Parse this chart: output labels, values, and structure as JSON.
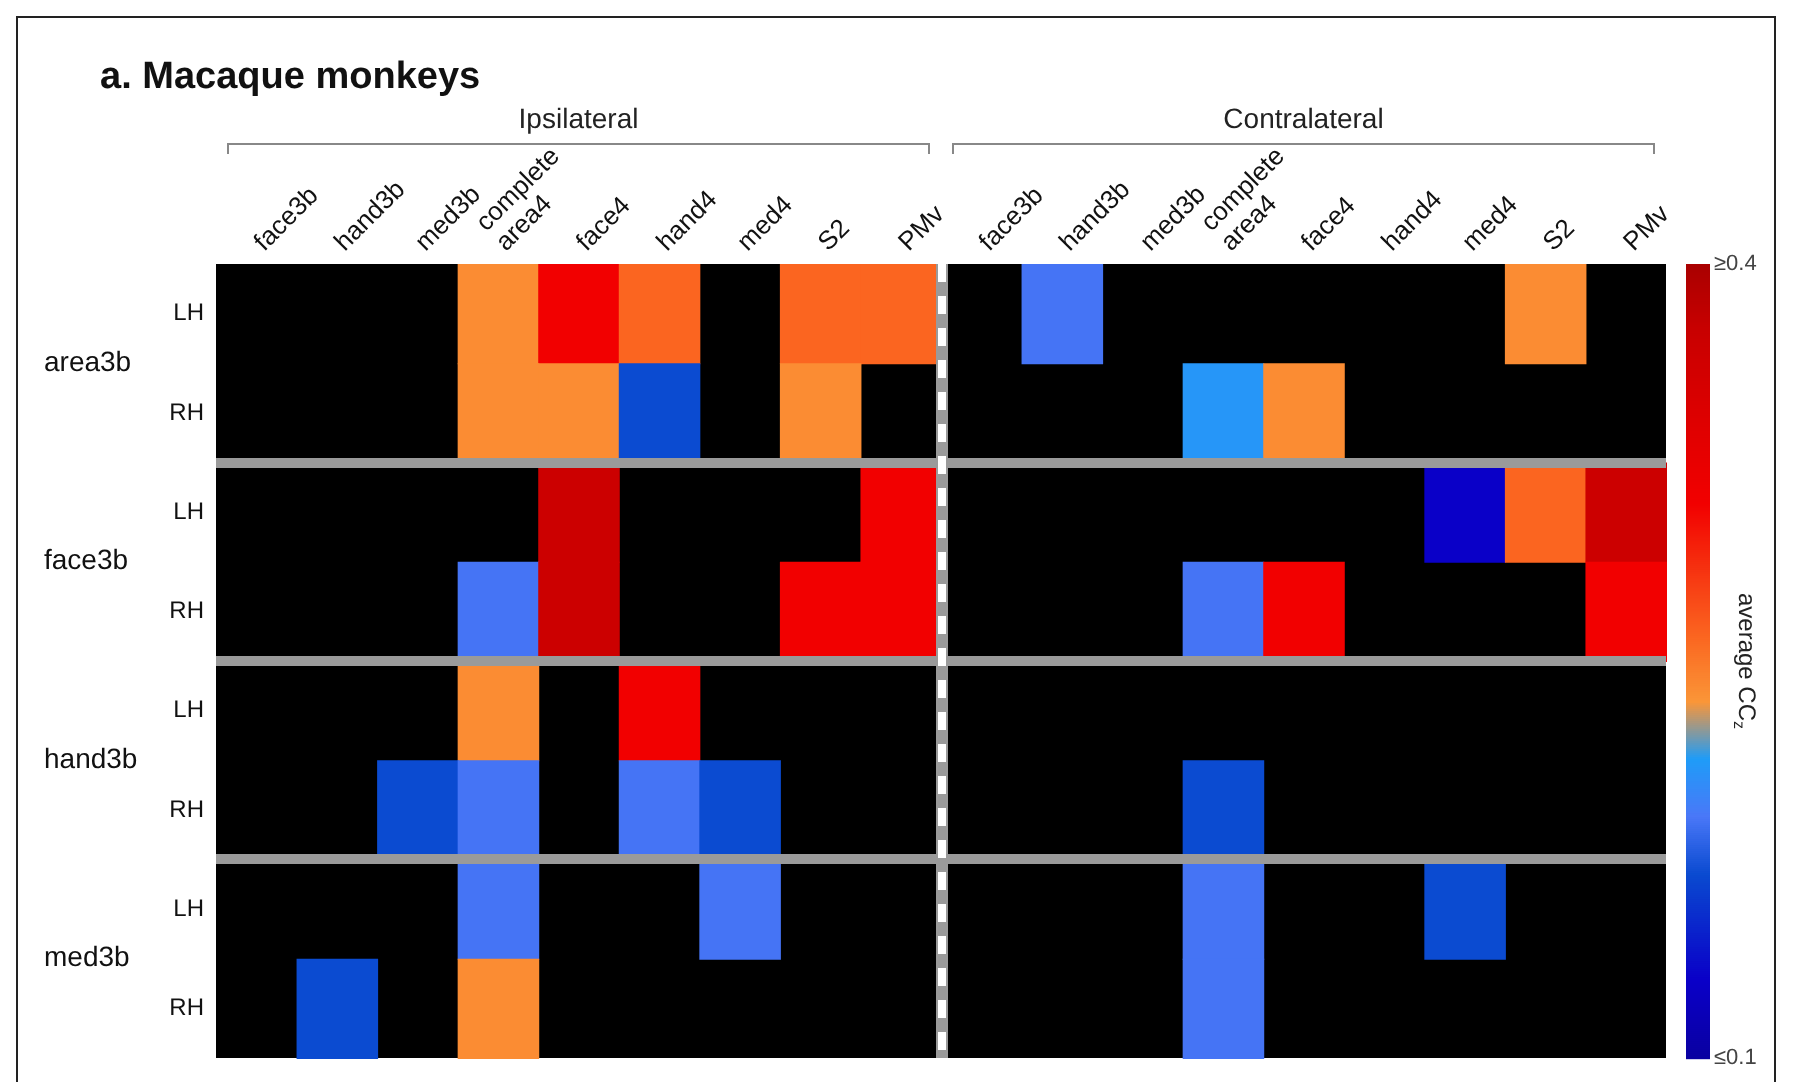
{
  "chart_data": {
    "type": "heatmap",
    "title": "a. Macaque monkeys",
    "clabel": "average CC$_{z}$",
    "categories": [
      "face3b",
      "hand3b",
      "med3b",
      "complete area4",
      "face4",
      "hand4",
      "med4",
      "S2",
      "PMv",
      "face3b",
      "hand3b",
      "med3b",
      "complete area4",
      "face4",
      "hand4",
      "med4",
      "S2",
      "PMv"
    ],
    "y_categories": [
      "LH",
      "RH",
      "LH",
      "RH",
      "LH",
      "RH",
      "LH",
      "RH"
    ],
    "cells": [
      [
        null,
        null,
        null,
        0.24,
        0.31,
        0.26,
        null,
        0.26,
        0.26,
        null,
        0.19,
        null,
        null,
        null,
        null,
        null,
        0.24,
        null
      ],
      [
        null,
        null,
        null,
        0.24,
        0.24,
        0.17,
        null,
        0.24,
        null,
        null,
        null,
        null,
        0.21,
        0.24,
        null,
        null,
        null,
        null
      ],
      [
        null,
        null,
        null,
        null,
        0.37,
        null,
        null,
        null,
        0.31,
        null,
        null,
        null,
        null,
        null,
        null,
        0.13,
        0.26,
        0.37
      ],
      [
        null,
        null,
        null,
        0.19,
        0.37,
        null,
        null,
        0.31,
        0.31,
        null,
        null,
        null,
        0.19,
        0.31,
        null,
        null,
        null,
        0.31
      ],
      [
        null,
        null,
        null,
        0.24,
        null,
        0.31,
        null,
        null,
        null,
        null,
        null,
        null,
        null,
        null,
        null,
        null,
        null,
        null
      ],
      [
        null,
        null,
        0.17,
        0.19,
        null,
        0.19,
        0.17,
        null,
        null,
        null,
        null,
        null,
        0.17,
        null,
        null,
        null,
        null,
        null
      ],
      [
        null,
        null,
        null,
        0.19,
        null,
        null,
        0.19,
        null,
        null,
        null,
        null,
        null,
        0.19,
        null,
        null,
        0.17,
        null,
        null
      ],
      [
        null,
        0.17,
        null,
        0.24,
        null,
        null,
        null,
        null,
        null,
        null,
        null,
        null,
        0.19,
        null,
        null,
        null,
        null,
        null
      ]
    ],
    "clim": [
      0.1,
      0.4
    ],
    "cticks": [
      {
        "value": 0.1,
        "label": "≤0.1"
      },
      {
        "value": 0.4,
        "label": "≥0.4"
      }
    ],
    "annotations": [
      "Ipsilateral",
      "Contralateral",
      "area3b",
      "face3b",
      "hand3b",
      "med3b"
    ]
  }
}
